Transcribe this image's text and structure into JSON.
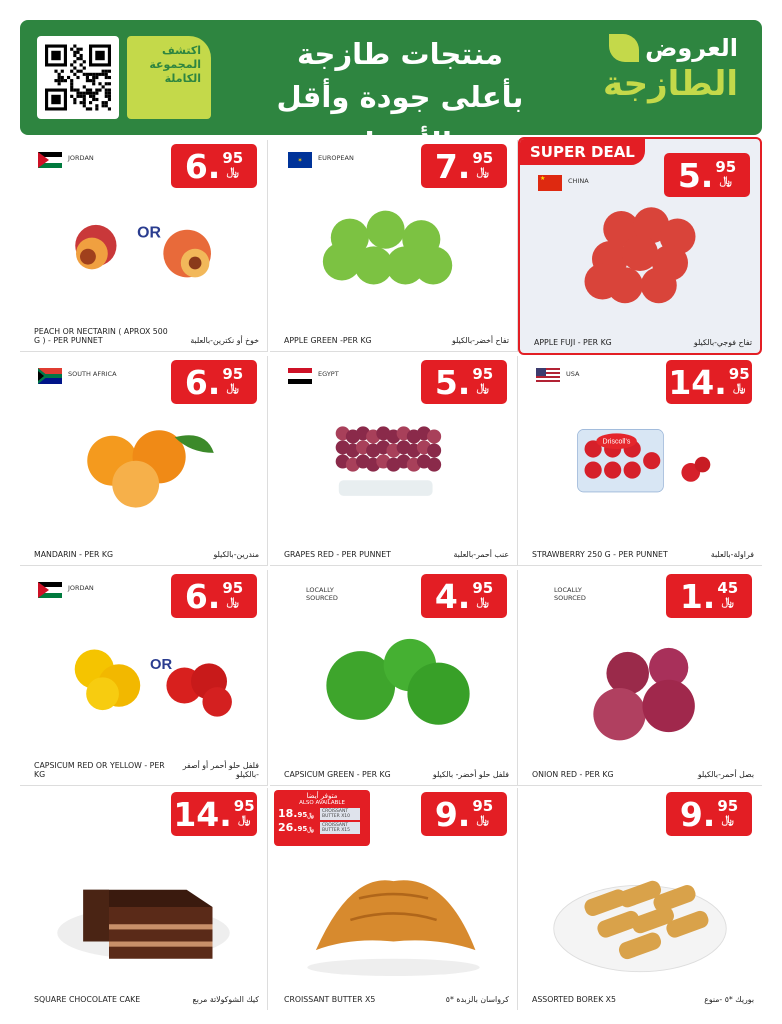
{
  "header": {
    "qr_icon": "qr-code-icon",
    "discover_text": "اكتشف المجموعة الكاملة",
    "headline_1": "منتجات طازجة",
    "headline_2": "بأعلى جودة وأقل الأسعار",
    "brand_1": "العروض",
    "brand_2": "الطازجة",
    "colors": {
      "green": "#2e8540",
      "lime": "#c4d94a"
    }
  },
  "currency_icon": "saudi-riyal-icon",
  "currency_glyph": "﷼",
  "price_color": "#e31e24",
  "products": [
    {
      "key": "peach",
      "origin": "JORDAN",
      "flag": "jordan",
      "int": "6.",
      "dec": "95",
      "en": "PEACH OR NECTARIN ( APROX 500 G ) - PER PUNNET",
      "ar": "خوخ أو نكترين-بالعلبة",
      "or": "OR"
    },
    {
      "key": "apple-green",
      "origin": "EUROPEAN",
      "flag": "eu",
      "int": "7.",
      "dec": "95",
      "en": "APPLE GREEN -PER KG",
      "ar": "تفاح أخضر-بالكيلو"
    },
    {
      "key": "apple-fuji",
      "origin": "CHINA",
      "flag": "china",
      "int": "5.",
      "dec": "95",
      "en": "APPLE FUJI - PER KG",
      "ar": "تفاح فوجي-بالكيلو",
      "super": "SUPER DEAL"
    },
    {
      "key": "mandarin",
      "origin": "SOUTH AFRICA",
      "flag": "za",
      "int": "6.",
      "dec": "95",
      "en": "MANDARIN - PER KG",
      "ar": "مندرين-بالكيلو"
    },
    {
      "key": "grapes",
      "origin": "EGYPT",
      "flag": "egypt",
      "int": "5.",
      "dec": "95",
      "en": "GRAPES RED - PER PUNNET",
      "ar": "عنب أحمر-بالعلبة"
    },
    {
      "key": "strawberry",
      "origin": "USA",
      "flag": "usa",
      "int": "14.",
      "dec": "95",
      "en": "STRAWBERRY 250 G - PER PUNNET",
      "ar": "فراولة-بالعلبة",
      "brand_label": "Driscoll's"
    },
    {
      "key": "capsicum",
      "origin": "JORDAN",
      "flag": "jordan",
      "int": "6.",
      "dec": "95",
      "en": "CAPSICUM RED OR YELLOW - PER KG",
      "ar": "فلفل حلو أحمر أو أصفر -بالكيلو",
      "or": "OR"
    },
    {
      "key": "capsicum-green",
      "origin": "LOCALLY SOURCED",
      "flag": "",
      "int": "4.",
      "dec": "95",
      "en": "CAPSICUM GREEN - PER KG",
      "ar": "فلفل حلو أخضر- بالكيلو"
    },
    {
      "key": "onion",
      "origin": "LOCALLY SOURCED",
      "flag": "",
      "int": "1.",
      "dec": "45",
      "en": "ONION RED - PER KG",
      "ar": "بصل أحمر-بالكيلو"
    },
    {
      "key": "cake",
      "origin": "",
      "flag": "",
      "int": "14.",
      "dec": "95",
      "en": "SQUARE CHOCOLATE CAKE",
      "ar": "كيك الشوكولاتة مربع"
    },
    {
      "key": "croissant",
      "origin": "",
      "flag": "",
      "int": "9.",
      "dec": "95",
      "en": "CROISSANT BUTTER  X5",
      "ar": "كرواسان بالزبدة *٥",
      "also": {
        "title_ar": "متوفر أيضا",
        "title_en": "ALSO AVAILABLE",
        "items": [
          {
            "int": "18.",
            "dec": "95",
            "name": "CROISSANT BUTTER X10"
          },
          {
            "int": "26.",
            "dec": "95",
            "name": "CROISSANT BUTTER X15"
          }
        ]
      }
    },
    {
      "key": "borek",
      "origin": "",
      "flag": "",
      "int": "9.",
      "dec": "95",
      "en": "ASSORTED BOREK  X5",
      "ar": "بوريك *٥ -منوع"
    }
  ]
}
